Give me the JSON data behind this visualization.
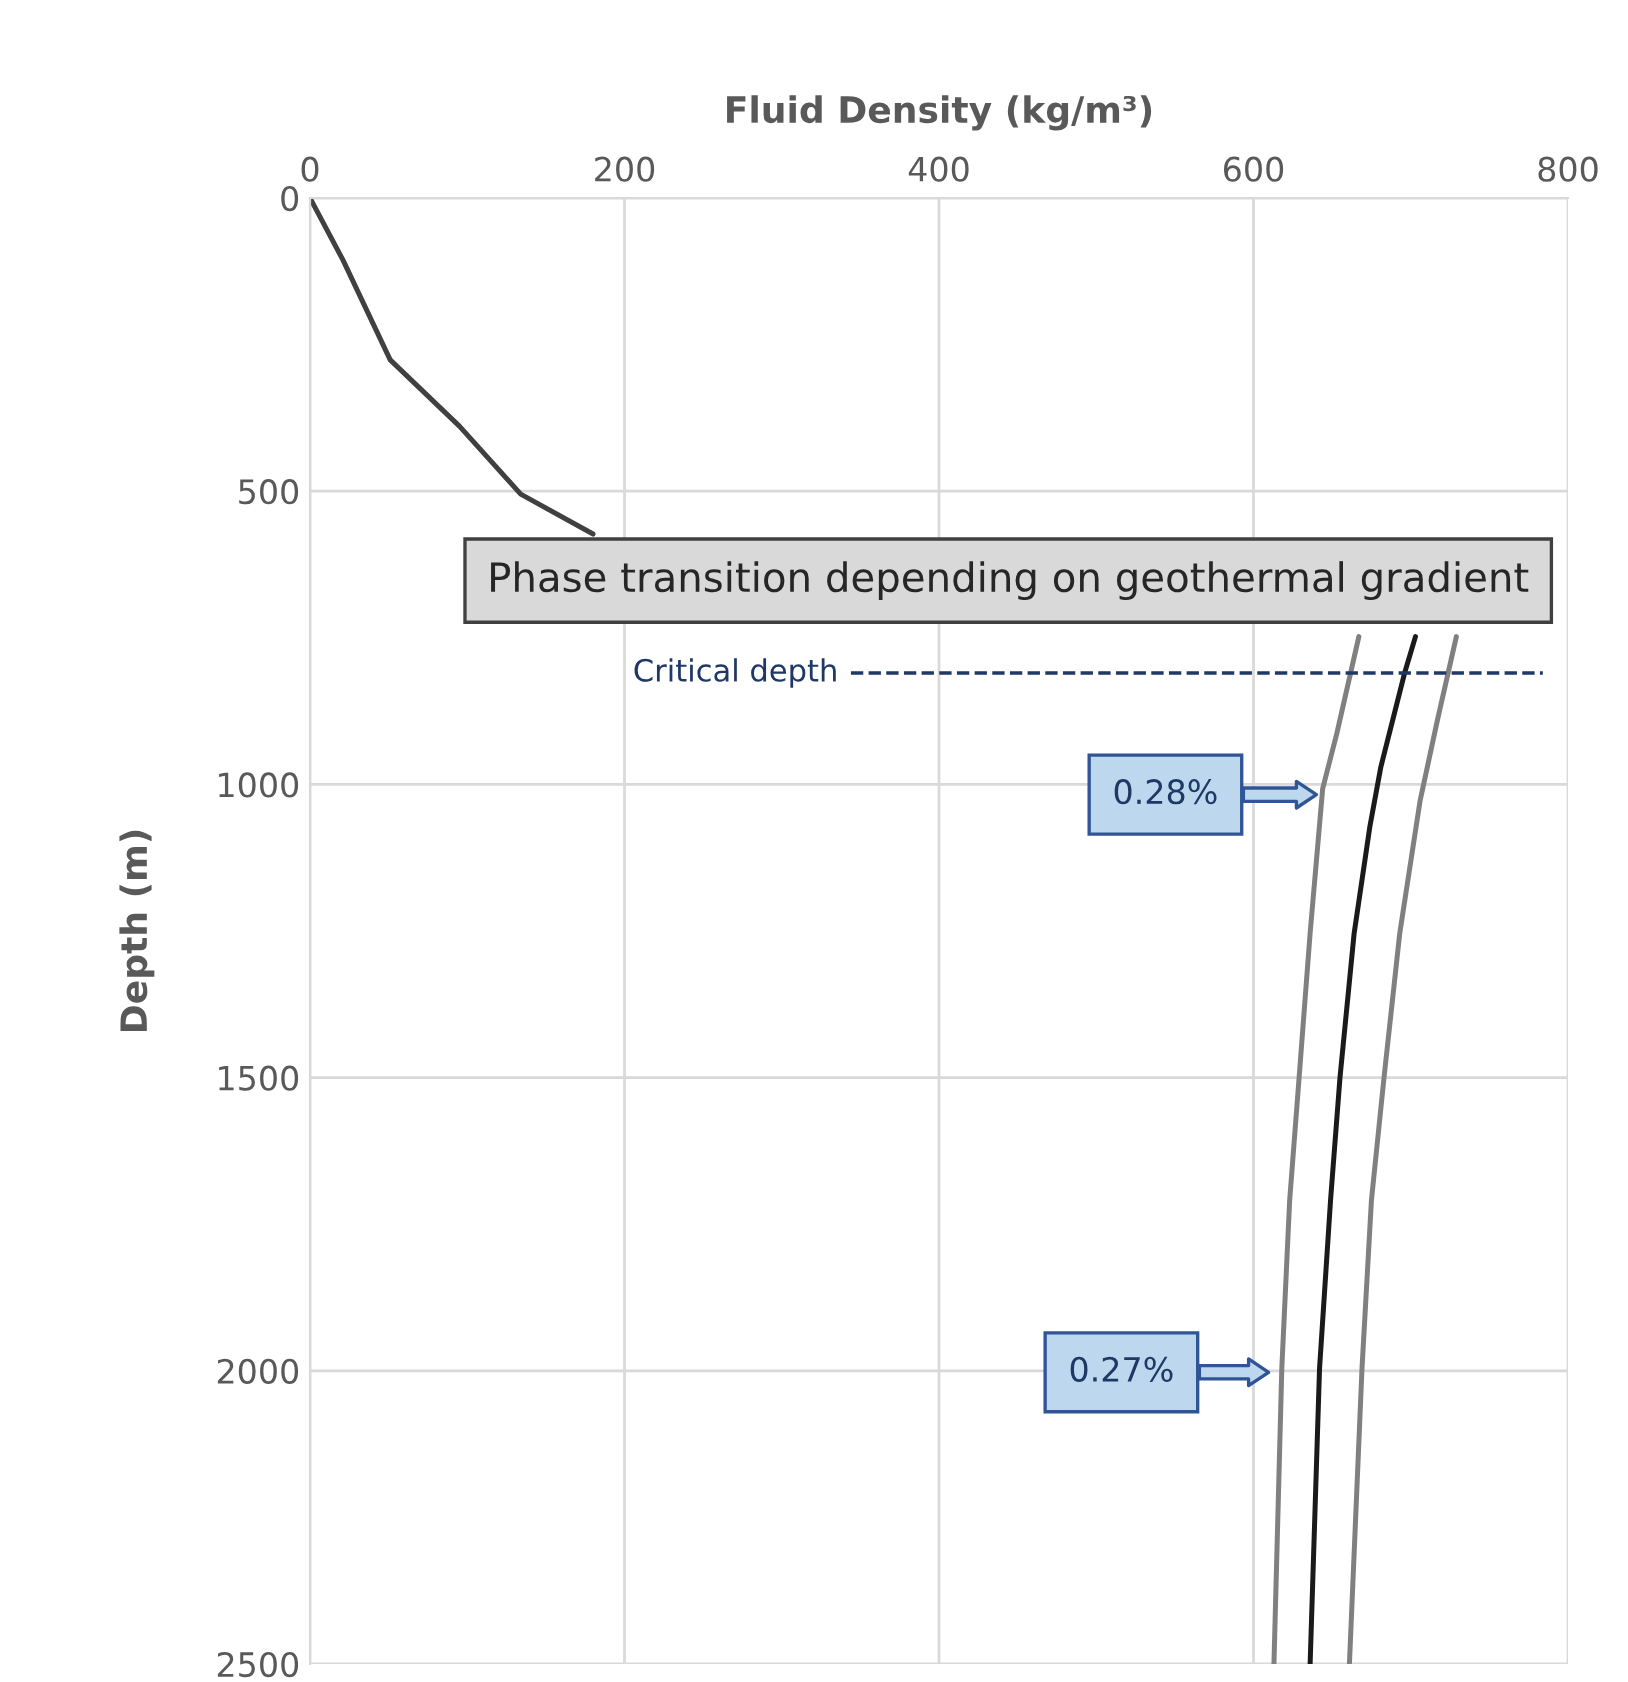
{
  "chart_data": {
    "type": "line",
    "xlabel": "Fluid Density (kg/m³)",
    "ylabel": "Depth (m)",
    "xlim": [
      0,
      800
    ],
    "xticks": [
      0,
      200,
      400,
      600,
      800
    ],
    "ylim": [
      2500,
      0
    ],
    "yticks": [
      0,
      500,
      1000,
      1500,
      2000,
      2500
    ],
    "grid": true,
    "legend": false,
    "marker": "none",
    "line_style": "solid",
    "series": [
      {
        "color": "#404040",
        "x": [
          0,
          21,
          51,
          95,
          134,
          180
        ],
        "values": [
          0,
          106,
          276,
          389,
          505,
          573
        ]
      },
      {
        "color": "#808080",
        "x": [
          667,
          653,
          644,
          636,
          629,
          623,
          618,
          613
        ],
        "values": [
          748,
          913,
          1007,
          1254,
          1500,
          1709,
          1996,
          2500
        ]
      },
      {
        "color": "#1a1a1a",
        "x": [
          703,
          696,
          681,
          674,
          664,
          655,
          649,
          642,
          636
        ],
        "values": [
          748,
          811,
          970,
          1072,
          1254,
          1500,
          1709,
          1996,
          2500
        ]
      },
      {
        "color": "#808080",
        "x": [
          729,
          717,
          706,
          693,
          683,
          675,
          669,
          661
        ],
        "values": [
          748,
          890,
          1027,
          1254,
          1500,
          1709,
          1996,
          2500
        ]
      }
    ],
    "ref_lines": [
      {
        "axis": "y",
        "value": 810,
        "label": "Critical depth",
        "color": "#1f3864",
        "line_style": "dashed"
      }
    ],
    "annotations": [
      "Phase transition depending on geothermal gradient",
      "0.28%",
      "0.27%"
    ]
  }
}
